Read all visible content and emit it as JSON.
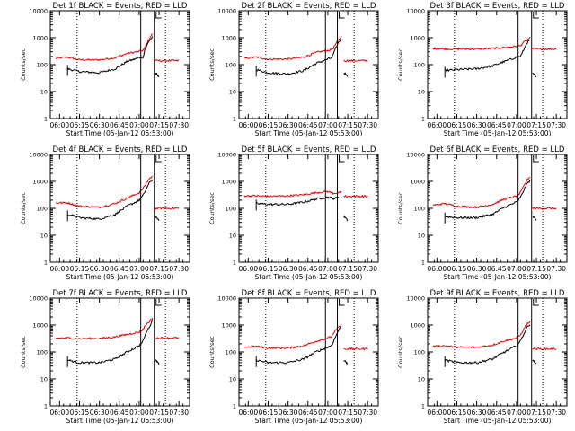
{
  "chart_data": {
    "type": "line",
    "figure": {
      "xlabel_template": "Start Time (05-Jan-12 05:53:00)",
      "ylabel": "Counts/sec",
      "y_scale": "log",
      "ylim": [
        1,
        10000
      ],
      "y_ticks": [
        "1",
        "10",
        "100",
        "1000",
        "10000"
      ],
      "x_range": [
        "05:53",
        "07:38"
      ],
      "x_tick_labels_a": [
        "06:00",
        "06:15",
        "06:30",
        "06:45",
        "07:00",
        "07:15",
        "07:30"
      ],
      "x_tick_labels_b": [
        "06:00",
        "06:15",
        "06:30",
        "06:45",
        "07:00",
        "07:15",
        "07:30"
      ],
      "series_names": [
        "Events (BLACK)",
        "LLD (RED)"
      ],
      "series_colors": [
        "#000000",
        "#e00000"
      ]
    },
    "panels": [
      {
        "title": "Det 1f BLACK = Events, RED = LLD",
        "x_ticks": "a",
        "events": [
          [
            6.1,
            70
          ],
          [
            6.25,
            55
          ],
          [
            6.5,
            50
          ],
          [
            6.7,
            70
          ],
          [
            6.85,
            130
          ],
          [
            7.0,
            180
          ],
          [
            7.05,
            190
          ],
          [
            7.07,
            360
          ],
          [
            7.13,
            800
          ],
          [
            7.17,
            1100
          ]
        ],
        "lld": [
          [
            5.95,
            170
          ],
          [
            6.1,
            190
          ],
          [
            6.25,
            150
          ],
          [
            6.5,
            150
          ],
          [
            6.7,
            180
          ],
          [
            6.85,
            260
          ],
          [
            7.0,
            310
          ],
          [
            7.05,
            340
          ],
          [
            7.07,
            420
          ],
          [
            7.13,
            1000
          ],
          [
            7.17,
            1400
          ]
        ],
        "events_after": [
          [
            7.2,
            50
          ],
          [
            7.22,
            45
          ],
          [
            7.25,
            35
          ]
        ],
        "lld_after": [
          [
            7.2,
            140
          ],
          [
            7.35,
            140
          ],
          [
            7.5,
            140
          ]
        ],
        "vlines": [
          [
            6.22,
            "dotted"
          ],
          [
            7.02,
            "solid"
          ],
          [
            7.19,
            "solid"
          ],
          [
            7.33,
            "dotted"
          ]
        ]
      },
      {
        "title": "Det 2f BLACK = Events, RED = LLD",
        "x_ticks": "b",
        "events": [
          [
            6.1,
            65
          ],
          [
            6.25,
            50
          ],
          [
            6.5,
            45
          ],
          [
            6.7,
            60
          ],
          [
            6.85,
            110
          ],
          [
            7.0,
            160
          ],
          [
            7.05,
            180
          ],
          [
            7.07,
            250
          ],
          [
            7.13,
            650
          ],
          [
            7.17,
            900
          ]
        ],
        "lld": [
          [
            5.95,
            170
          ],
          [
            6.1,
            190
          ],
          [
            6.25,
            160
          ],
          [
            6.5,
            160
          ],
          [
            6.7,
            190
          ],
          [
            6.85,
            280
          ],
          [
            7.0,
            340
          ],
          [
            7.05,
            370
          ],
          [
            7.07,
            420
          ],
          [
            7.13,
            800
          ],
          [
            7.17,
            1100
          ]
        ],
        "events_after": [
          [
            7.2,
            50
          ],
          [
            7.22,
            45
          ],
          [
            7.25,
            35
          ]
        ],
        "lld_after": [
          [
            7.2,
            140
          ],
          [
            7.35,
            140
          ],
          [
            7.5,
            140
          ]
        ],
        "vlines": [
          [
            6.22,
            "dotted"
          ],
          [
            6.97,
            "solid"
          ],
          [
            7.12,
            "solid"
          ],
          [
            7.33,
            "dotted"
          ]
        ]
      },
      {
        "title": "Det 3f BLACK = Events, RED = LLD",
        "x_ticks": "b",
        "events": [
          [
            6.1,
            60
          ],
          [
            6.25,
            65
          ],
          [
            6.5,
            70
          ],
          [
            6.7,
            90
          ],
          [
            6.85,
            130
          ],
          [
            7.0,
            190
          ],
          [
            7.05,
            200
          ],
          [
            7.07,
            260
          ],
          [
            7.13,
            650
          ],
          [
            7.17,
            800
          ]
        ],
        "lld": [
          [
            5.95,
            400
          ],
          [
            6.1,
            380
          ],
          [
            6.25,
            380
          ],
          [
            6.5,
            380
          ],
          [
            6.7,
            400
          ],
          [
            6.85,
            430
          ],
          [
            7.0,
            480
          ],
          [
            7.05,
            500
          ],
          [
            7.07,
            600
          ],
          [
            7.13,
            800
          ],
          [
            7.17,
            1000
          ]
        ],
        "events_after": [
          [
            7.2,
            50
          ],
          [
            7.22,
            45
          ],
          [
            7.25,
            35
          ]
        ],
        "lld_after": [
          [
            7.2,
            380
          ],
          [
            7.35,
            380
          ],
          [
            7.5,
            380
          ]
        ],
        "vlines": [
          [
            6.22,
            "dotted"
          ],
          [
            7.02,
            "solid"
          ],
          [
            7.19,
            "solid"
          ],
          [
            7.33,
            "dotted"
          ]
        ]
      },
      {
        "title": "Det 4f BLACK = Events, RED = LLD",
        "x_ticks": "a",
        "events": [
          [
            6.1,
            60
          ],
          [
            6.25,
            45
          ],
          [
            6.5,
            40
          ],
          [
            6.7,
            60
          ],
          [
            6.85,
            120
          ],
          [
            7.0,
            200
          ],
          [
            7.05,
            300
          ],
          [
            7.07,
            400
          ],
          [
            7.13,
            900
          ],
          [
            7.17,
            1200
          ]
        ],
        "lld": [
          [
            5.95,
            160
          ],
          [
            6.1,
            160
          ],
          [
            6.25,
            120
          ],
          [
            6.5,
            110
          ],
          [
            6.7,
            150
          ],
          [
            6.85,
            240
          ],
          [
            7.0,
            380
          ],
          [
            7.05,
            550
          ],
          [
            7.07,
            700
          ],
          [
            7.13,
            1300
          ],
          [
            7.17,
            1500
          ]
        ],
        "events_after": [
          [
            7.2,
            50
          ],
          [
            7.22,
            45
          ],
          [
            7.25,
            35
          ]
        ],
        "lld_after": [
          [
            7.2,
            100
          ],
          [
            7.35,
            100
          ],
          [
            7.5,
            100
          ]
        ],
        "vlines": [
          [
            6.22,
            "dotted"
          ],
          [
            7.02,
            "solid"
          ],
          [
            7.19,
            "solid"
          ],
          [
            7.33,
            "dotted"
          ]
        ]
      },
      {
        "title": "Det 5f BLACK = Events, RED = LLD",
        "x_ticks": "b",
        "events": [
          [
            6.1,
            150
          ],
          [
            6.25,
            140
          ],
          [
            6.5,
            140
          ],
          [
            6.7,
            170
          ],
          [
            6.85,
            220
          ],
          [
            7.0,
            260
          ],
          [
            7.05,
            240
          ],
          [
            7.07,
            230
          ],
          [
            7.13,
            250
          ],
          [
            7.17,
            260
          ]
        ],
        "lld": [
          [
            5.95,
            290
          ],
          [
            6.1,
            290
          ],
          [
            6.25,
            280
          ],
          [
            6.5,
            290
          ],
          [
            6.7,
            320
          ],
          [
            6.85,
            380
          ],
          [
            7.0,
            420
          ],
          [
            7.05,
            380
          ],
          [
            7.07,
            360
          ],
          [
            7.13,
            380
          ],
          [
            7.17,
            400
          ]
        ],
        "events_after": [
          [
            7.2,
            50
          ],
          [
            7.22,
            45
          ],
          [
            7.25,
            35
          ]
        ],
        "lld_after": [
          [
            7.2,
            280
          ],
          [
            7.35,
            280
          ],
          [
            7.5,
            280
          ]
        ],
        "vlines": [
          [
            6.22,
            "dotted"
          ],
          [
            6.97,
            "solid"
          ],
          [
            7.12,
            "solid"
          ],
          [
            7.33,
            "dotted"
          ]
        ]
      },
      {
        "title": "Det 6f BLACK = Events, RED = LLD",
        "x_ticks": "b",
        "events": [
          [
            6.1,
            50
          ],
          [
            6.25,
            45
          ],
          [
            6.5,
            45
          ],
          [
            6.7,
            60
          ],
          [
            6.85,
            110
          ],
          [
            7.0,
            170
          ],
          [
            7.05,
            250
          ],
          [
            7.07,
            350
          ],
          [
            7.13,
            800
          ],
          [
            7.17,
            1100
          ]
        ],
        "lld": [
          [
            5.95,
            130
          ],
          [
            6.1,
            150
          ],
          [
            6.25,
            120
          ],
          [
            6.5,
            110
          ],
          [
            6.7,
            140
          ],
          [
            6.85,
            220
          ],
          [
            7.0,
            280
          ],
          [
            7.05,
            380
          ],
          [
            7.07,
            500
          ],
          [
            7.13,
            1100
          ],
          [
            7.17,
            1500
          ]
        ],
        "events_after": [
          [
            7.2,
            50
          ],
          [
            7.22,
            45
          ],
          [
            7.25,
            35
          ]
        ],
        "lld_after": [
          [
            7.2,
            100
          ],
          [
            7.35,
            100
          ],
          [
            7.5,
            100
          ]
        ],
        "vlines": [
          [
            6.22,
            "dotted"
          ],
          [
            7.02,
            "solid"
          ],
          [
            7.19,
            "solid"
          ],
          [
            7.33,
            "dotted"
          ]
        ]
      },
      {
        "title": "Det 7f BLACK = Events, RED = LLD",
        "x_ticks": "a",
        "events": [
          [
            6.1,
            50
          ],
          [
            6.25,
            40
          ],
          [
            6.5,
            40
          ],
          [
            6.7,
            55
          ],
          [
            6.85,
            100
          ],
          [
            7.0,
            170
          ],
          [
            7.05,
            250
          ],
          [
            7.07,
            400
          ],
          [
            7.13,
            900
          ],
          [
            7.17,
            1500
          ]
        ],
        "lld": [
          [
            5.95,
            330
          ],
          [
            6.1,
            330
          ],
          [
            6.25,
            310
          ],
          [
            6.5,
            320
          ],
          [
            6.7,
            360
          ],
          [
            6.85,
            450
          ],
          [
            7.0,
            550
          ],
          [
            7.05,
            700
          ],
          [
            7.07,
            900
          ],
          [
            7.13,
            1400
          ],
          [
            7.17,
            1800
          ]
        ],
        "events_after": [
          [
            7.2,
            50
          ],
          [
            7.22,
            45
          ],
          [
            7.25,
            35
          ]
        ],
        "lld_after": [
          [
            7.2,
            330
          ],
          [
            7.35,
            330
          ],
          [
            7.5,
            330
          ]
        ],
        "vlines": [
          [
            6.22,
            "dotted"
          ],
          [
            7.02,
            "solid"
          ],
          [
            7.19,
            "solid"
          ],
          [
            7.33,
            "dotted"
          ]
        ]
      },
      {
        "title": "Det 8f BLACK = Events, RED = LLD",
        "x_ticks": "b",
        "events": [
          [
            6.1,
            50
          ],
          [
            6.25,
            40
          ],
          [
            6.5,
            40
          ],
          [
            6.7,
            55
          ],
          [
            6.85,
            100
          ],
          [
            7.0,
            150
          ],
          [
            7.05,
            180
          ],
          [
            7.07,
            250
          ],
          [
            7.13,
            600
          ],
          [
            7.17,
            900
          ]
        ],
        "lld": [
          [
            5.95,
            150
          ],
          [
            6.1,
            160
          ],
          [
            6.25,
            140
          ],
          [
            6.5,
            140
          ],
          [
            6.7,
            170
          ],
          [
            6.85,
            250
          ],
          [
            7.0,
            330
          ],
          [
            7.05,
            380
          ],
          [
            7.07,
            500
          ],
          [
            7.13,
            800
          ],
          [
            7.17,
            1000
          ]
        ],
        "events_after": [
          [
            7.2,
            50
          ],
          [
            7.22,
            45
          ],
          [
            7.25,
            35
          ]
        ],
        "lld_after": [
          [
            7.2,
            130
          ],
          [
            7.35,
            130
          ],
          [
            7.5,
            130
          ]
        ],
        "vlines": [
          [
            6.22,
            "dotted"
          ],
          [
            6.97,
            "solid"
          ],
          [
            7.12,
            "solid"
          ],
          [
            7.33,
            "dotted"
          ]
        ]
      },
      {
        "title": "Det 9f BLACK = Events, RED = LLD",
        "x_ticks": "b",
        "events": [
          [
            6.1,
            50
          ],
          [
            6.25,
            40
          ],
          [
            6.5,
            40
          ],
          [
            6.7,
            55
          ],
          [
            6.85,
            100
          ],
          [
            7.0,
            170
          ],
          [
            7.05,
            250
          ],
          [
            7.07,
            350
          ],
          [
            7.13,
            800
          ],
          [
            7.17,
            1100
          ]
        ],
        "lld": [
          [
            5.95,
            160
          ],
          [
            6.1,
            170
          ],
          [
            6.25,
            150
          ],
          [
            6.5,
            150
          ],
          [
            6.7,
            180
          ],
          [
            6.85,
            260
          ],
          [
            7.0,
            330
          ],
          [
            7.05,
            420
          ],
          [
            7.07,
            550
          ],
          [
            7.13,
            1100
          ],
          [
            7.17,
            1300
          ]
        ],
        "events_after": [
          [
            7.2,
            50
          ],
          [
            7.22,
            45
          ],
          [
            7.25,
            35
          ]
        ],
        "lld_after": [
          [
            7.2,
            130
          ],
          [
            7.35,
            130
          ],
          [
            7.5,
            130
          ]
        ],
        "vlines": [
          [
            6.22,
            "dotted"
          ],
          [
            7.02,
            "solid"
          ],
          [
            7.19,
            "solid"
          ],
          [
            7.33,
            "dotted"
          ]
        ]
      }
    ]
  }
}
